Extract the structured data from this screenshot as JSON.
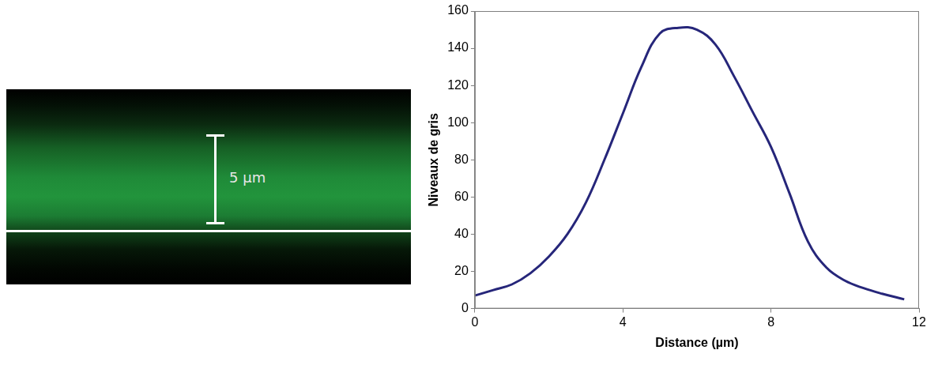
{
  "chart_data": {
    "type": "line",
    "x_label": "Distance (µm)",
    "y_label": "Niveaux de gris",
    "x": [
      0,
      0.5,
      1,
      1.5,
      2,
      2.5,
      3,
      3.5,
      4,
      4.5,
      5,
      5.5,
      6,
      6.5,
      7,
      7.5,
      8,
      8.5,
      9,
      9.5,
      10,
      10.5,
      11,
      11.6
    ],
    "values": [
      7,
      10,
      13,
      19,
      28,
      40,
      57,
      80,
      105,
      130,
      148,
      151,
      150,
      142,
      125,
      106,
      87,
      62,
      36,
      22,
      15,
      11,
      8,
      5
    ],
    "color": "#26267a",
    "xlim": [
      0,
      12
    ],
    "xticks": [
      0,
      4,
      8,
      12
    ],
    "ylim": [
      0,
      160
    ],
    "yticks": [
      0,
      20,
      40,
      60,
      80,
      100,
      120,
      140,
      160
    ],
    "grid": false
  },
  "image": {
    "scale_bar_label": "5 µm"
  }
}
